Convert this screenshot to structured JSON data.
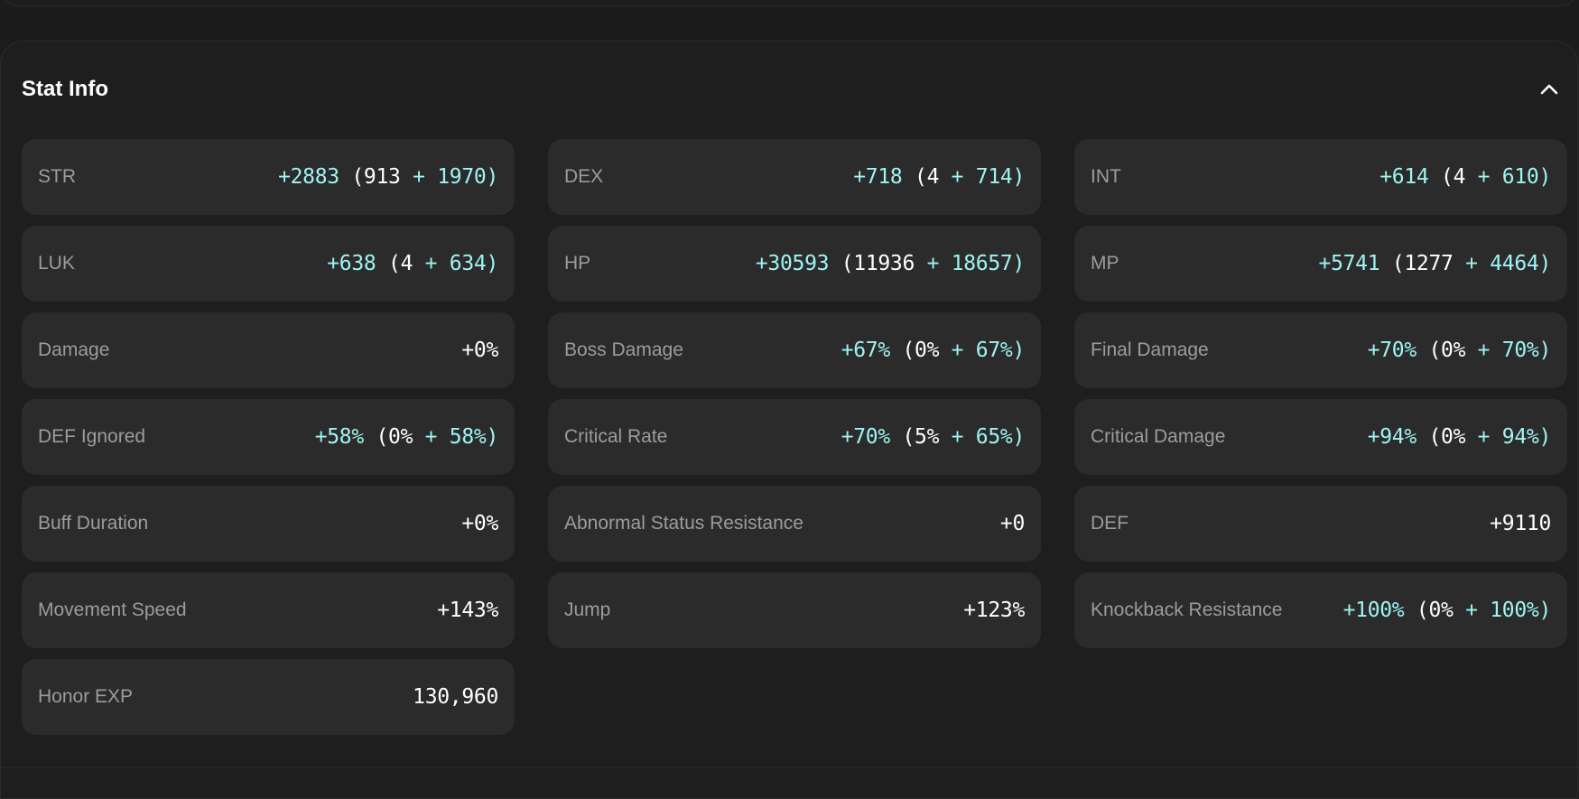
{
  "panel": {
    "title": "Stat Info",
    "collapse_icon": "chevron-up-icon"
  },
  "colors": {
    "background": "#1c1c1c",
    "card": "#2b2b2b",
    "label": "#9c9c9c",
    "accent": "#9ff3f3",
    "value": "#ffffff"
  },
  "stats": [
    {
      "label": "STR",
      "total": "+2883",
      "base": "913",
      "bonus": "1970"
    },
    {
      "label": "DEX",
      "total": "+718",
      "base": "4",
      "bonus": "714"
    },
    {
      "label": "INT",
      "total": "+614",
      "base": "4",
      "bonus": "610"
    },
    {
      "label": "LUK",
      "total": "+638",
      "base": "4",
      "bonus": "634"
    },
    {
      "label": "HP",
      "total": "+30593",
      "base": "11936",
      "bonus": "18657"
    },
    {
      "label": "MP",
      "total": "+5741",
      "base": "1277",
      "bonus": "4464"
    },
    {
      "label": "Damage",
      "value": "+0%"
    },
    {
      "label": "Boss Damage",
      "total": "+67%",
      "base": "0%",
      "bonus": "67%"
    },
    {
      "label": "Final Damage",
      "total": "+70%",
      "base": "0%",
      "bonus": "70%"
    },
    {
      "label": "DEF Ignored",
      "total": "+58%",
      "base": "0%",
      "bonus": "58%"
    },
    {
      "label": "Critical Rate",
      "total": "+70%",
      "base": "5%",
      "bonus": "65%"
    },
    {
      "label": "Critical Damage",
      "total": "+94%",
      "base": "0%",
      "bonus": "94%"
    },
    {
      "label": "Buff Duration",
      "value": "+0%"
    },
    {
      "label": "Abnormal Status Resistance",
      "value": "+0"
    },
    {
      "label": "DEF",
      "value": "+9110"
    },
    {
      "label": "Movement Speed",
      "value": "+143%"
    },
    {
      "label": "Jump",
      "value": "+123%"
    },
    {
      "label": "Knockback Resistance",
      "total": "+100%",
      "base": "0%",
      "bonus": "100%"
    },
    {
      "label": "Honor EXP",
      "value": "130,960"
    }
  ]
}
